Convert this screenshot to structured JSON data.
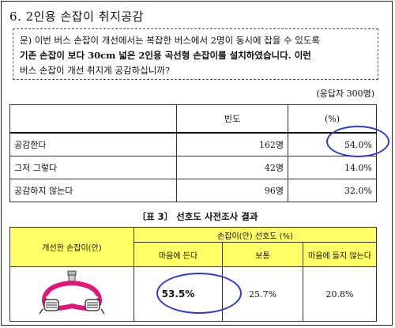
{
  "title": "6. 2인용 손잡이 취지공감",
  "question": {
    "line1": "문) 이번 버스 손잡이 개선에서는 복잡한 버스에서 2명이 동시에 잡을 수 있도록",
    "line2": "기존 손잡이 보다 30cm 넓은 2인용 곡선형 손잡이를 설치하였습니다. 이런",
    "line3": "버스 손잡이 개선 취지게 공감하십니까?"
  },
  "respondents": "(응답자 300명)",
  "table1": {
    "headers": [
      "",
      "빈도",
      "(%)"
    ],
    "rows": [
      {
        "label": "공감한다",
        "freq": "162명",
        "pct": "54.0%"
      },
      {
        "label": "그저 그렇다",
        "freq": "42명",
        "pct": "14.0%"
      },
      {
        "label": "공감하지 않는다",
        "freq": "96명",
        "pct": "32.0%"
      }
    ]
  },
  "caption": "〔표 3〕 선호도 사전조사 결과",
  "table2": {
    "row_header": "개선한 손잡이(안)",
    "group_header": "손잡이(안) 선호도 (%)",
    "columns": [
      "마음에 든다",
      "보통",
      "마음에 들지 않는다"
    ],
    "values": [
      "53.5%",
      "25.7%",
      "20.8%"
    ],
    "colors": {
      "header_bg": "#ffff66",
      "handle": "#e0177a",
      "circle": "#2a3ad8"
    },
    "icon": "two-person-bus-handle-icon"
  }
}
